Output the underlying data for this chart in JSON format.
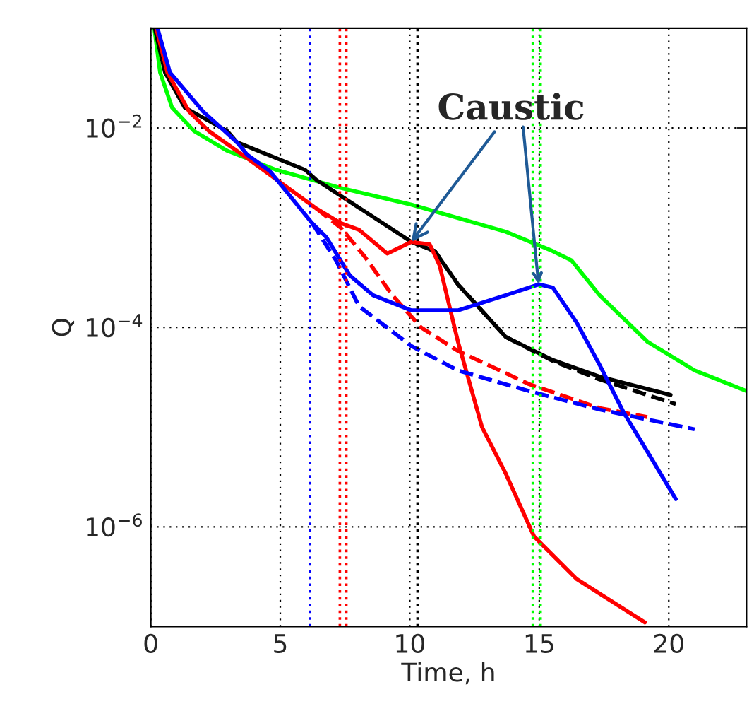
{
  "chart_data": {
    "type": "line",
    "xlabel": "Time, h",
    "ylabel": "Q",
    "log": "y",
    "xlim": [
      0,
      23
    ],
    "xticks": [
      0,
      5,
      10,
      15,
      20
    ],
    "ylim": [
      1e-07,
      0.1
    ],
    "yticks": [
      {
        "value": 0.01,
        "label": "10$^{−2}$"
      },
      {
        "value": 0.0001,
        "label": "10$^{−4}$"
      },
      {
        "value": 1e-06,
        "label": "10$^{−6}$"
      }
    ],
    "grid": true,
    "legend": false,
    "series": [
      {
        "color": "#00ff00",
        "line_style": "solid",
        "x": [
          0.14,
          0.36,
          0.82,
          1.67,
          2.95,
          4.84,
          7.33,
          10.06,
          13.71,
          15.53,
          16.24,
          17.33,
          19.17,
          21.0,
          23.0
        ],
        "values": [
          0.098,
          0.036,
          0.016,
          0.0093,
          0.0059,
          0.0038,
          0.0025,
          0.0017,
          0.00091,
          0.00058,
          0.00047,
          0.00021,
          7.2e-05,
          3.7e-05,
          2.3e-05
        ]
      },
      {
        "color": "#000000",
        "line_style": "dashed",
        "x": [
          10.06,
          10.97,
          11.86,
          13.71,
          15.53,
          17.33,
          20.27
        ],
        "values": [
          0.00072,
          0.00058,
          0.00027,
          8e-05,
          4.6e-05,
          3e-05,
          1.7e-05
        ]
      },
      {
        "color": "#000000",
        "line_style": "solid",
        "x": [
          0.16,
          0.55,
          1.31,
          2.95,
          3.32,
          5.96,
          6.4,
          10.06,
          10.97,
          11.86,
          13.71,
          15.53,
          17.33,
          20.07
        ],
        "values": [
          0.098,
          0.036,
          0.016,
          0.0093,
          0.0072,
          0.0038,
          0.003,
          0.00072,
          0.00058,
          0.00027,
          8e-05,
          4.7e-05,
          3.2e-05,
          2.1e-05
        ]
      },
      {
        "color": "#ff0000",
        "line_style": "dashed",
        "x": [
          6.4,
          7.33,
          8.24,
          9.33,
          10.43,
          11.86,
          14.6,
          17.33,
          19.17
        ],
        "values": [
          0.00155,
          0.001,
          0.00052,
          0.00021,
          0.0001,
          5.8e-05,
          2.7e-05,
          1.55e-05,
          1.26e-05
        ]
      },
      {
        "color": "#ff0000",
        "line_style": "solid",
        "x": [
          0.22,
          0.64,
          1.48,
          2.24,
          3.53,
          4.59,
          6.4,
          7.33,
          8.04,
          9.13,
          10.06,
          10.77,
          11.15,
          11.86,
          12.79,
          13.71,
          14.8,
          16.44,
          19.08
        ],
        "values": [
          0.098,
          0.036,
          0.0146,
          0.0093,
          0.0054,
          0.0034,
          0.00155,
          0.00111,
          0.00095,
          0.00055,
          0.00072,
          0.00068,
          0.00042,
          7.2e-05,
          1e-05,
          3.4e-06,
          8e-07,
          3e-07,
          1.1e-07
        ]
      },
      {
        "color": "#0000ff",
        "line_style": "dashed",
        "x": [
          6.23,
          7.15,
          8.04,
          10.06,
          11.86,
          14.6,
          17.33,
          21.0
        ],
        "values": [
          0.00111,
          0.00047,
          0.000163,
          6.5e-05,
          3.7e-05,
          2.3e-05,
          1.5e-05,
          9.5e-06
        ]
      },
      {
        "color": "#0000ff",
        "line_style": "solid",
        "x": [
          0.27,
          0.74,
          2.02,
          3.32,
          3.72,
          4.59,
          6.23,
          6.78,
          7.69,
          8.58,
          10.06,
          11.86,
          13.71,
          14.98,
          15.53,
          16.44,
          17.33,
          18.26,
          19.17,
          20.27
        ],
        "values": [
          0.098,
          0.036,
          0.0146,
          0.0072,
          0.0054,
          0.0037,
          0.00111,
          0.0008,
          0.00033,
          0.00021,
          0.000148,
          0.000148,
          0.00021,
          0.00027,
          0.00025,
          0.000112,
          4.2e-05,
          1.4e-05,
          5.7e-06,
          1.9e-06
        ]
      }
    ],
    "ref_lines": [
      {
        "axis": "x",
        "value": 6.15,
        "color": "#0000ff",
        "line_style": "dotted"
      },
      {
        "axis": "x",
        "value": 7.3,
        "color": "#ff0000",
        "line_style": "dotted"
      },
      {
        "axis": "x",
        "value": 7.55,
        "color": "#ff0000",
        "line_style": "dotted"
      },
      {
        "axis": "x",
        "value": 10.3,
        "color": "#000000",
        "line_style": "dotted"
      },
      {
        "axis": "x",
        "value": 14.75,
        "color": "#00ff00",
        "line_style": "dotted"
      },
      {
        "axis": "x",
        "value": 15.05,
        "color": "#00ff00",
        "line_style": "dotted"
      }
    ],
    "annotations": [
      {
        "text": "Caustic",
        "x": 10.06,
        "y": 0.00072
      }
    ]
  }
}
